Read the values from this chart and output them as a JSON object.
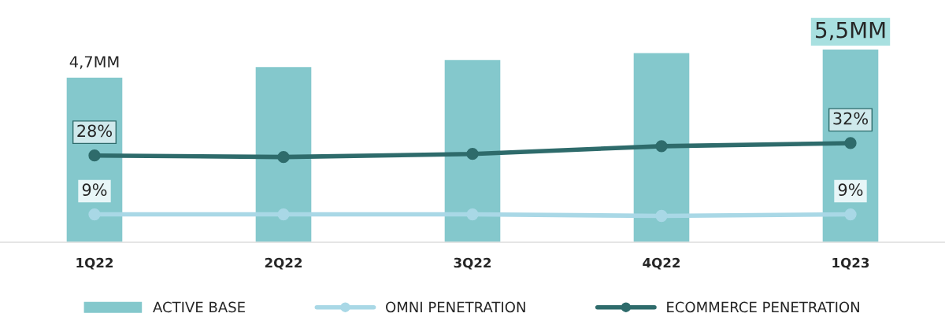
{
  "chart_data": {
    "type": "bar",
    "categories": [
      "1Q22",
      "2Q22",
      "3Q22",
      "4Q22",
      "1Q23"
    ],
    "series": [
      {
        "name": "ACTIVE BASE",
        "color": "#84c8cc",
        "values": [
          4.7,
          5.0,
          5.2,
          5.4,
          5.5
        ],
        "value_labels": [
          "4,7MM",
          null,
          null,
          null,
          "5,5MM"
        ]
      },
      {
        "name": "OMNI PENETRATION",
        "type": "line",
        "axis": "y2",
        "color": "#a9d8e6",
        "values": [
          9,
          9,
          9,
          8.5,
          9
        ],
        "value_labels": [
          "9%",
          null,
          null,
          null,
          "9%"
        ]
      },
      {
        "name": "ECOMMERCE PENETRATION",
        "type": "line",
        "axis": "y2",
        "color": "#2e6b6b",
        "values": [
          28,
          27.5,
          28.5,
          31,
          32
        ],
        "value_labels": [
          "28%",
          null,
          null,
          null,
          "32%"
        ]
      }
    ],
    "tick_labels": "x",
    "legend": "bottom",
    "marker": "circle",
    "grid": false
  }
}
